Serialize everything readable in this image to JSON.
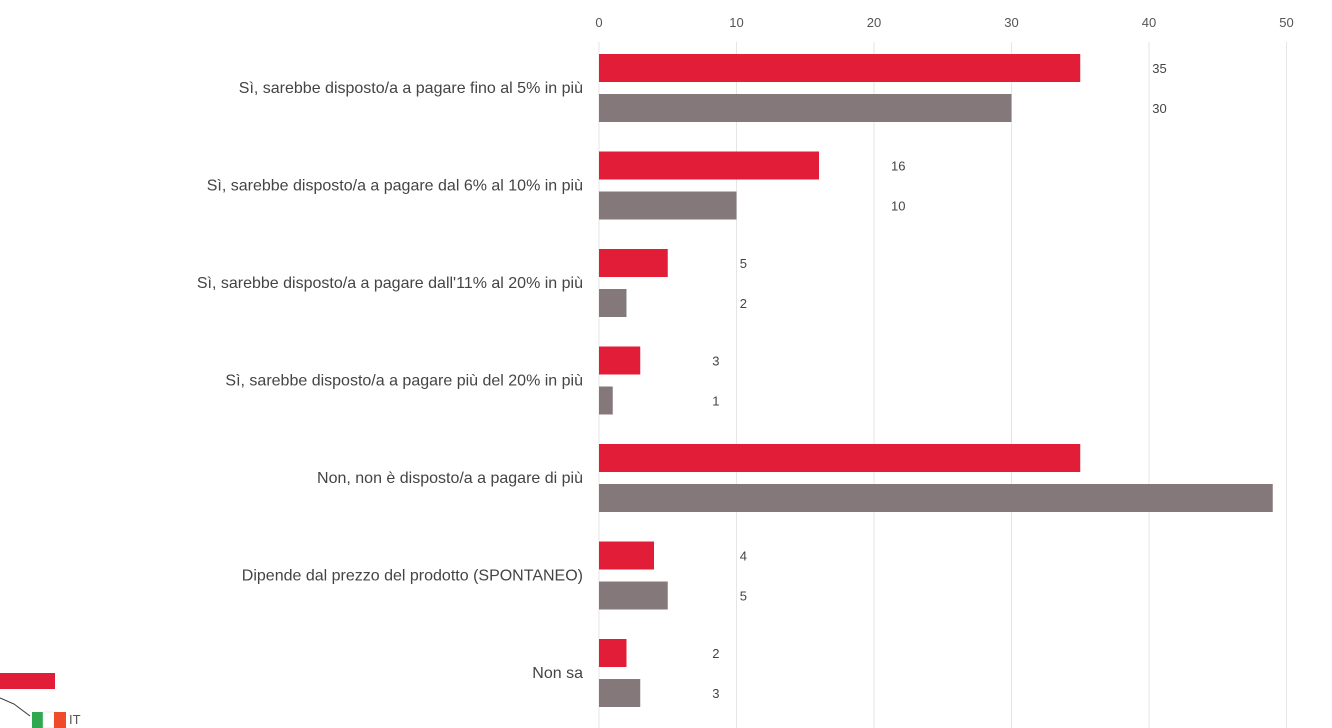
{
  "chart_data": {
    "type": "bar",
    "orientation": "horizontal",
    "categories": [
      "Sì, sarebbe disposto/a a pagare fino al 5% in più",
      "Sì, sarebbe disposto/a a pagare dal 6% al 10% in più",
      "Sì, sarebbe disposto/a a pagare dall'11% al 20% in più",
      "Sì, sarebbe disposto/a a pagare più del 20% in più",
      "Non, non è disposto/a a pagare di più",
      "Dipende dal prezzo del prodotto (SPONTANEO)",
      "Non sa"
    ],
    "series": [
      {
        "values": [
          35,
          16,
          5,
          3,
          35,
          4,
          2
        ],
        "color": "#e21d38"
      },
      {
        "name": "IT",
        "values": [
          30,
          10,
          2,
          1,
          49,
          5,
          3
        ],
        "color": "#85787b"
      }
    ],
    "xticks": [
      0,
      10,
      20,
      30,
      40,
      50
    ],
    "xlim": [
      0,
      50
    ],
    "grid": true,
    "legend_position": "bottom-left",
    "title": "",
    "xlabel": "",
    "ylabel": ""
  }
}
